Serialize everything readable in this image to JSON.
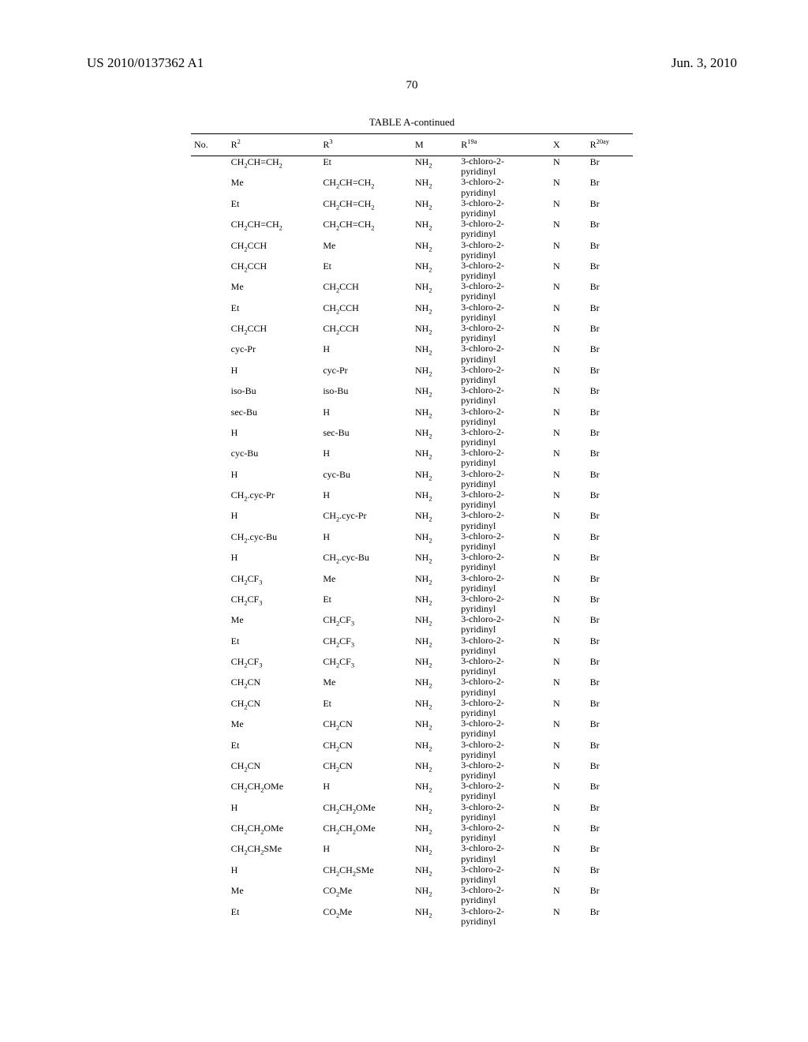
{
  "header": {
    "pub_no": "US 2010/0137362 A1",
    "date": "Jun. 3, 2010"
  },
  "page_number": "70",
  "table": {
    "caption": "TABLE A-continued",
    "columns": {
      "no": "No.",
      "r2": "R<sup>2</sup>",
      "r3": "R<sup>3</sup>",
      "m": "M",
      "r19a": "R<sup>19a</sup>",
      "x": "X",
      "r20ay": "R<sup>20ay</sup>"
    },
    "r19_line1": "3-chloro-2-",
    "r19_line2": "pyridinyl",
    "m_val": "NH<sub>2</sub>",
    "x_val": "N",
    "r20_val": "Br",
    "rows": [
      {
        "r2": "CH<sub>2</sub>CH=CH<sub>2</sub>",
        "r3": "Et"
      },
      {
        "r2": "Me",
        "r3": "CH<sub>2</sub>CH=CH<sub>2</sub>"
      },
      {
        "r2": "Et",
        "r3": "CH<sub>2</sub>CH=CH<sub>2</sub>"
      },
      {
        "r2": "CH<sub>2</sub>CH=CH<sub>2</sub>",
        "r3": "CH<sub>2</sub>CH=CH<sub>2</sub>"
      },
      {
        "r2": "CH<sub>2</sub>CCH",
        "r3": "Me"
      },
      {
        "r2": "CH<sub>2</sub>CCH",
        "r3": "Et"
      },
      {
        "r2": "Me",
        "r3": "CH<sub>2</sub>CCH"
      },
      {
        "r2": "Et",
        "r3": "CH<sub>2</sub>CCH"
      },
      {
        "r2": "CH<sub>2</sub>CCH",
        "r3": "CH<sub>2</sub>CCH"
      },
      {
        "r2": "cyc-Pr",
        "r3": "H"
      },
      {
        "r2": "H",
        "r3": "cyc-Pr"
      },
      {
        "r2": "iso-Bu",
        "r3": "iso-Bu"
      },
      {
        "r2": "sec-Bu",
        "r3": "H"
      },
      {
        "r2": "H",
        "r3": "sec-Bu"
      },
      {
        "r2": "cyc-Bu",
        "r3": "H"
      },
      {
        "r2": "H",
        "r3": "cyc-Bu"
      },
      {
        "r2": "CH<sub>2</sub>.cyc-Pr",
        "r3": "H"
      },
      {
        "r2": "H",
        "r3": "CH<sub>2</sub>.cyc-Pr"
      },
      {
        "r2": "CH<sub>2</sub>.cyc-Bu",
        "r3": "H"
      },
      {
        "r2": "H",
        "r3": "CH<sub>2</sub>.cyc-Bu"
      },
      {
        "r2": "CH<sub>2</sub>CF<sub>3</sub>",
        "r3": "Me"
      },
      {
        "r2": "CH<sub>2</sub>CF<sub>3</sub>",
        "r3": "Et"
      },
      {
        "r2": "Me",
        "r3": "CH<sub>2</sub>CF<sub>3</sub>"
      },
      {
        "r2": "Et",
        "r3": "CH<sub>2</sub>CF<sub>3</sub>"
      },
      {
        "r2": "CH<sub>2</sub>CF<sub>3</sub>",
        "r3": "CH<sub>2</sub>CF<sub>3</sub>"
      },
      {
        "r2": "CH<sub>2</sub>CN",
        "r3": "Me"
      },
      {
        "r2": "CH<sub>2</sub>CN",
        "r3": "Et"
      },
      {
        "r2": "Me",
        "r3": "CH<sub>2</sub>CN"
      },
      {
        "r2": "Et",
        "r3": "CH<sub>2</sub>CN"
      },
      {
        "r2": "CH<sub>2</sub>CN",
        "r3": "CH<sub>2</sub>CN"
      },
      {
        "r2": "CH<sub>2</sub>CH<sub>2</sub>OMe",
        "r3": "H"
      },
      {
        "r2": "H",
        "r3": "CH<sub>2</sub>CH<sub>2</sub>OMe"
      },
      {
        "r2": "CH<sub>2</sub>CH<sub>2</sub>OMe",
        "r3": "CH<sub>2</sub>CH<sub>2</sub>OMe"
      },
      {
        "r2": "CH<sub>2</sub>CH<sub>2</sub>SMe",
        "r3": "H"
      },
      {
        "r2": "H",
        "r3": "CH<sub>2</sub>CH<sub>2</sub>SMe"
      },
      {
        "r2": "Me",
        "r3": "CO<sub>2</sub>Me"
      },
      {
        "r2": "Et",
        "r3": "CO<sub>2</sub>Me"
      }
    ]
  }
}
